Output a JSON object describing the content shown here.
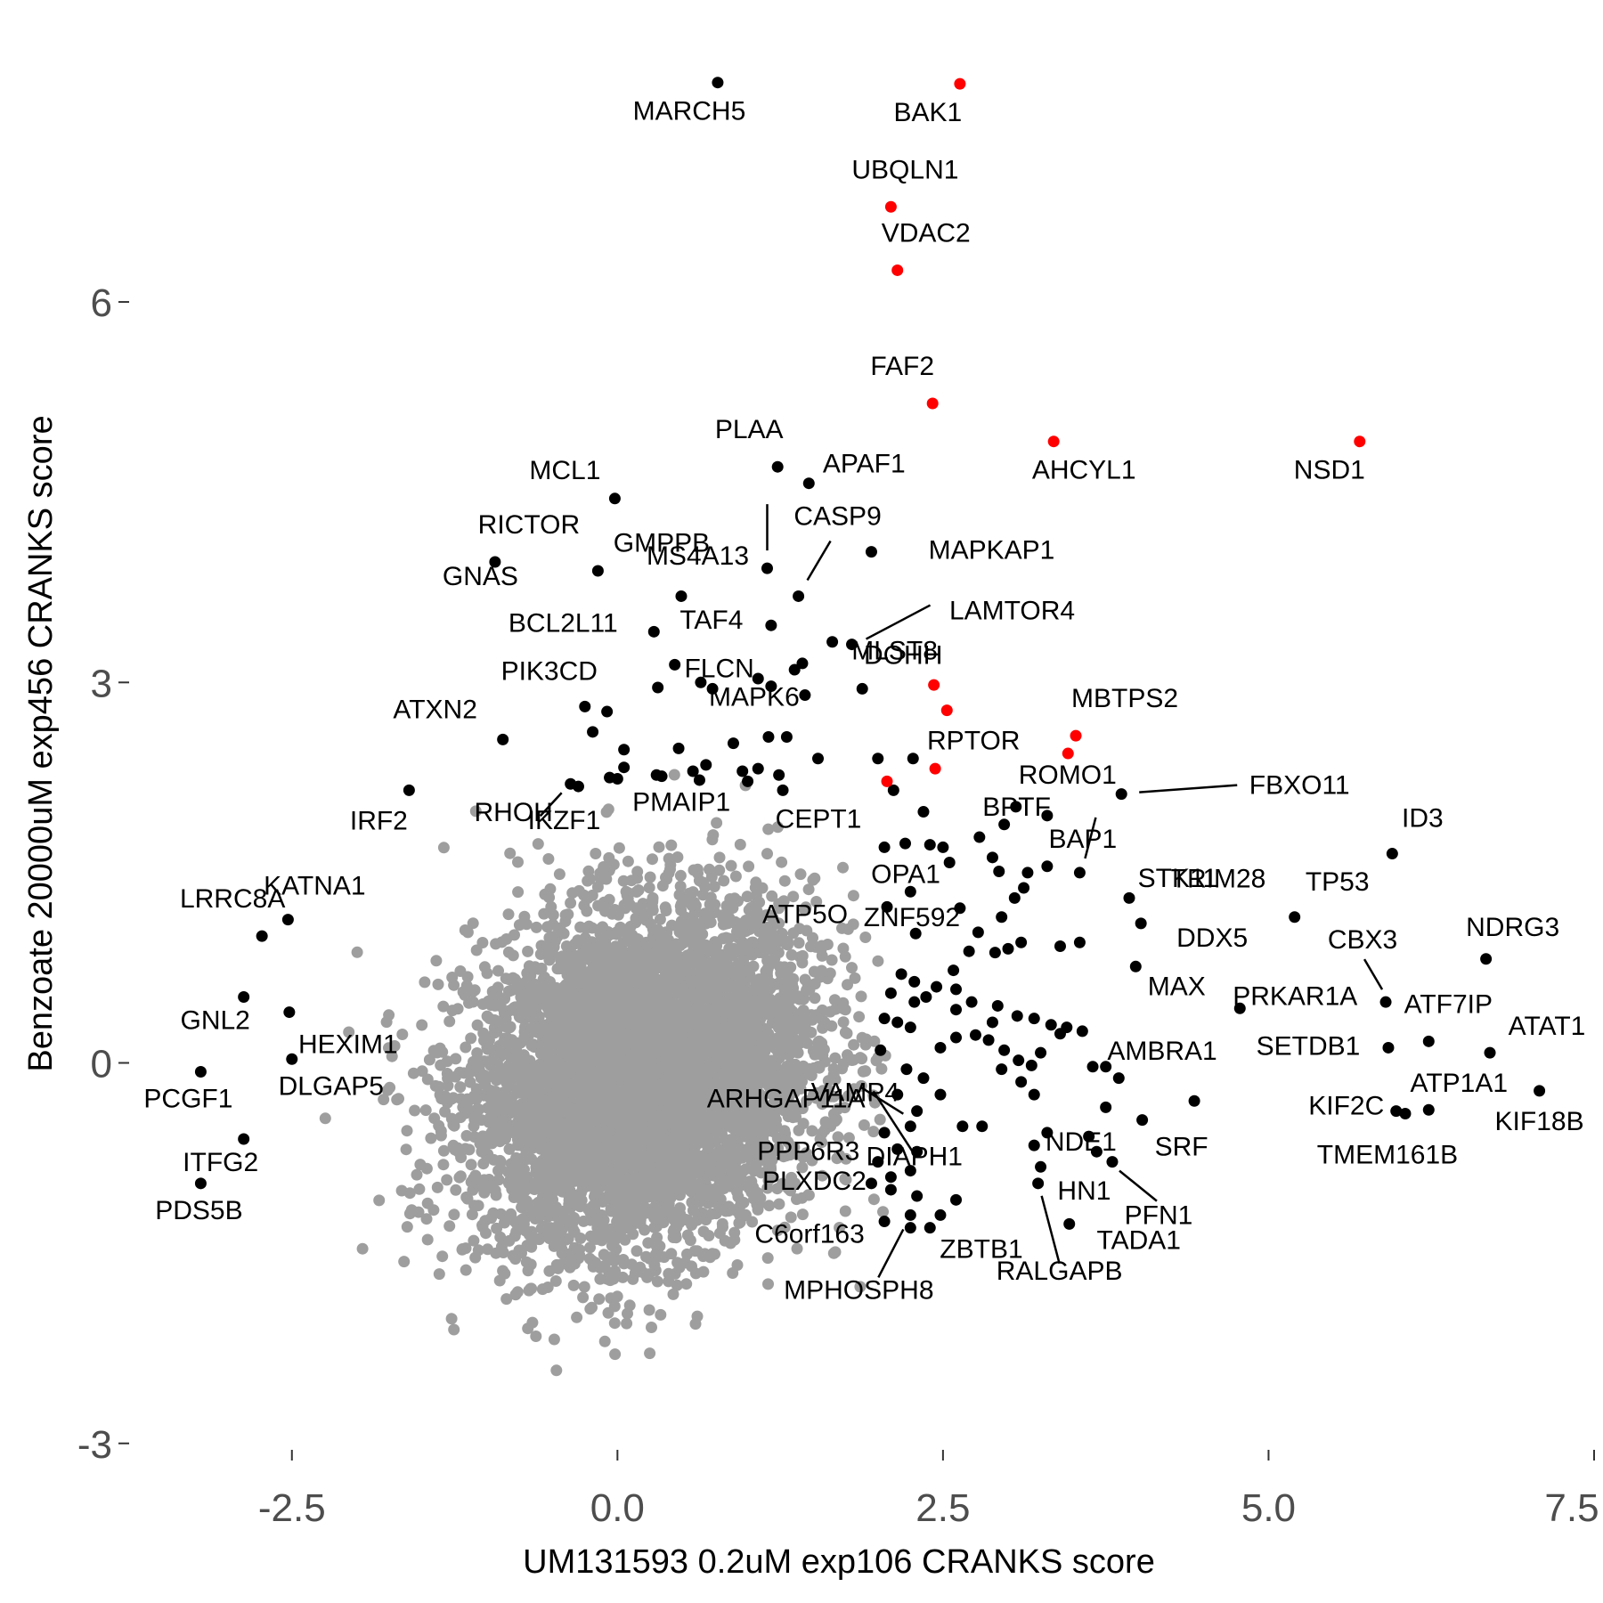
{
  "chart_data": {
    "type": "scatter",
    "xlabel": "UM131593 0.2uM exp106 CRANKS score",
    "ylabel": "Benzoate 20000uM exp456 CRANKS score",
    "xlim": [
      -3.75,
      7.5
    ],
    "ylim": [
      -3.1,
      8.1
    ],
    "x_ticks": [
      {
        "value": -2.5,
        "label": "-2.5"
      },
      {
        "value": 0.0,
        "label": "0.0"
      },
      {
        "value": 2.5,
        "label": "2.5"
      },
      {
        "value": 5.0,
        "label": "5.0"
      },
      {
        "value": 7.5,
        "label": "7.5"
      }
    ],
    "y_ticks": [
      {
        "value": -3,
        "label": "-3"
      },
      {
        "value": 0,
        "label": "0"
      },
      {
        "value": 3,
        "label": "3"
      },
      {
        "value": 6,
        "label": "6"
      }
    ],
    "grid": false,
    "colors": {
      "background": "#7f7f7f",
      "highlight": "#000000",
      "red": "#ff0000",
      "tick": "#4d4d4d"
    },
    "background_cloud": {
      "description_color": "#9e9e9e",
      "center_x": 0.2,
      "center_y": -0.1,
      "sd_x": 0.65,
      "sd_y": 0.65,
      "count": 6000
    },
    "red_points": [
      {
        "label": "BAK1",
        "x": 2.63,
        "y": 7.72
      },
      {
        "label": "UBQLN1",
        "x": 2.1,
        "y": 6.75
      },
      {
        "label": "VDAC2",
        "x": 2.15,
        "y": 6.25
      },
      {
        "label": "FAF2",
        "x": 2.42,
        "y": 5.2
      },
      {
        "label": "AHCYL1",
        "x": 3.35,
        "y": 4.9
      },
      {
        "label": "NSD1",
        "x": 5.7,
        "y": 4.9
      },
      {
        "label": "",
        "x": 2.43,
        "y": 2.98
      },
      {
        "label": "",
        "x": 2.53,
        "y": 2.78
      },
      {
        "label": "MBTPS2",
        "x": 3.52,
        "y": 2.58
      },
      {
        "label": "",
        "x": 3.46,
        "y": 2.44
      },
      {
        "label": "",
        "x": 2.44,
        "y": 2.32
      },
      {
        "label": "",
        "x": 2.07,
        "y": 2.22
      }
    ],
    "labeled_points": [
      {
        "label": "MARCH5",
        "x": 0.77,
        "y": 7.73
      },
      {
        "label": "PLAA",
        "x": 1.23,
        "y": 4.7
      },
      {
        "label": "APAF1",
        "x": 1.47,
        "y": 4.57
      },
      {
        "label": "MCL1",
        "x": -0.02,
        "y": 4.45
      },
      {
        "label": "MS4A13",
        "x": 1.15,
        "y": 3.9
      },
      {
        "label": "RICTOR",
        "x": -0.94,
        "y": 3.95
      },
      {
        "label": "GNAS",
        "x": -0.15,
        "y": 3.88
      },
      {
        "label": "MAPKAP1",
        "x": 1.95,
        "y": 4.03
      },
      {
        "label": "GMPPB",
        "x": 0.49,
        "y": 3.68
      },
      {
        "label": "CASP9",
        "x": 1.39,
        "y": 3.68
      },
      {
        "label": "TAF4",
        "x": 1.18,
        "y": 3.45
      },
      {
        "label": "BCL2L11",
        "x": 0.28,
        "y": 3.4
      },
      {
        "label": "MLST8",
        "x": 1.65,
        "y": 3.32
      },
      {
        "label": "LAMTOR4",
        "x": 1.8,
        "y": 3.3
      },
      {
        "label": "FLCN",
        "x": 0.44,
        "y": 3.14
      },
      {
        "label": "PIK3CD",
        "x": -0.25,
        "y": 2.81
      },
      {
        "label": "DOHH",
        "x": 1.88,
        "y": 2.95
      },
      {
        "label": "MAPK6",
        "x": 0.64,
        "y": 3.0
      },
      {
        "label": "ATXN2",
        "x": -0.88,
        "y": 2.55
      },
      {
        "label": "RHOH",
        "x": -0.36,
        "y": 2.2
      },
      {
        "label": "RPTOR",
        "x": 2.27,
        "y": 2.4
      },
      {
        "label": "ROMO1",
        "x": 3.06,
        "y": 2.02
      },
      {
        "label": "FBXO11",
        "x": 3.87,
        "y": 2.12
      },
      {
        "label": "BPTF",
        "x": 2.97,
        "y": 1.88
      },
      {
        "label": "PMAIP1",
        "x": 0.3,
        "y": 2.27
      },
      {
        "label": "CEPT1",
        "x": 1.27,
        "y": 2.15
      },
      {
        "label": "IRF2",
        "x": -1.6,
        "y": 2.15
      },
      {
        "label": "IKZF1",
        "x": -0.3,
        "y": 2.18
      },
      {
        "label": "BAP1",
        "x": 3.3,
        "y": 1.95
      },
      {
        "label": "STK11",
        "x": 3.55,
        "y": 1.5
      },
      {
        "label": "OPA1",
        "x": 2.05,
        "y": 1.7
      },
      {
        "label": "ID3",
        "x": 5.95,
        "y": 1.65
      },
      {
        "label": "TRIM28",
        "x": 3.93,
        "y": 1.3
      },
      {
        "label": "TP53",
        "x": 5.2,
        "y": 1.15
      },
      {
        "label": "ZNF592",
        "x": 3.15,
        "y": 1.5
      },
      {
        "label": "DDX5",
        "x": 4.02,
        "y": 1.1
      },
      {
        "label": "ATP5O",
        "x": 2.07,
        "y": 1.23
      },
      {
        "label": "KATNA1",
        "x": -2.53,
        "y": 1.13
      },
      {
        "label": "CBX3",
        "x": 5.9,
        "y": 0.48
      },
      {
        "label": "NDRG3",
        "x": 6.67,
        "y": 0.82
      },
      {
        "label": "LRRC8A",
        "x": -2.73,
        "y": 1.0
      },
      {
        "label": "MAX",
        "x": 3.98,
        "y": 0.76
      },
      {
        "label": "PRKAR1A",
        "x": 4.78,
        "y": 0.43
      },
      {
        "label": "ATF7IP",
        "x": 6.23,
        "y": 0.17
      },
      {
        "label": "GNL2",
        "x": -2.87,
        "y": 0.52
      },
      {
        "label": "HEXIM1",
        "x": -2.52,
        "y": 0.4
      },
      {
        "label": "ATAT1",
        "x": 6.7,
        "y": 0.08
      },
      {
        "label": "SETDB1",
        "x": 5.92,
        "y": 0.12
      },
      {
        "label": "AMBRA1",
        "x": 3.65,
        "y": -0.03
      },
      {
        "label": "ARHGAP11A",
        "x": 2.02,
        "y": 0.1
      },
      {
        "label": "DLGAP5",
        "x": -2.5,
        "y": 0.03
      },
      {
        "label": "ATP1A1",
        "x": 6.23,
        "y": -0.37
      },
      {
        "label": "PCGF1",
        "x": -3.2,
        "y": -0.07
      },
      {
        "label": "KIF2C",
        "x": 5.98,
        "y": -0.38
      },
      {
        "label": "KIF18B",
        "x": 7.08,
        "y": -0.22
      },
      {
        "label": "VAMP4",
        "x": 2.25,
        "y": -0.5
      },
      {
        "label": "NDE1",
        "x": 3.3,
        "y": -0.55
      },
      {
        "label": "SRF",
        "x": 4.03,
        "y": -0.45
      },
      {
        "label": "ITFG2",
        "x": -2.87,
        "y": -0.6
      },
      {
        "label": "TMEM161B",
        "x": 6.05,
        "y": -0.4
      },
      {
        "label": "PPP6R3",
        "x": 2.0,
        "y": -0.78
      },
      {
        "label": "DIAPH1",
        "x": 2.65,
        "y": -0.5
      },
      {
        "label": "HN1",
        "x": 3.68,
        "y": -0.7
      },
      {
        "label": "PFN1",
        "x": 3.8,
        "y": -0.78
      },
      {
        "label": "PDS5B",
        "x": -3.2,
        "y": -0.95
      },
      {
        "label": "PLXDC2",
        "x": 2.1,
        "y": -1.0
      },
      {
        "label": "C6orf163",
        "x": 2.05,
        "y": -1.25
      },
      {
        "label": "ZBTB1",
        "x": 2.48,
        "y": -1.2
      },
      {
        "label": "TADA1",
        "x": 3.47,
        "y": -1.27
      },
      {
        "label": "MPHOSPH8",
        "x": 2.25,
        "y": -1.2
      },
      {
        "label": "RALGAPB",
        "x": 3.23,
        "y": -0.95
      }
    ],
    "extra_black_points": [
      [
        0.73,
        2.95
      ],
      [
        1.08,
        3.03
      ],
      [
        1.36,
        3.1
      ],
      [
        1.42,
        3.15
      ],
      [
        1.18,
        2.97
      ],
      [
        1.44,
        2.9
      ],
      [
        0.31,
        2.96
      ],
      [
        -0.08,
        2.77
      ],
      [
        -0.19,
        2.61
      ],
      [
        0.47,
        2.48
      ],
      [
        0.05,
        2.47
      ],
      [
        0.89,
        2.52
      ],
      [
        1.16,
        2.57
      ],
      [
        1.3,
        2.57
      ],
      [
        1.54,
        2.4
      ],
      [
        2.0,
        2.4
      ],
      [
        0.68,
        2.35
      ],
      [
        1.08,
        2.32
      ],
      [
        0.96,
        2.3
      ],
      [
        1.24,
        2.27
      ],
      [
        1.0,
        2.22
      ],
      [
        0.58,
        2.3
      ],
      [
        0.05,
        2.33
      ],
      [
        0.34,
        2.26
      ],
      [
        0.63,
        2.23
      ],
      [
        -0.06,
        2.25
      ],
      [
        0.0,
        2.24
      ],
      [
        2.35,
        1.98
      ],
      [
        2.12,
        2.15
      ],
      [
        2.21,
        1.73
      ],
      [
        2.55,
        1.58
      ],
      [
        2.4,
        1.72
      ],
      [
        2.5,
        1.7
      ],
      [
        2.78,
        1.78
      ],
      [
        2.88,
        1.62
      ],
      [
        2.93,
        1.51
      ],
      [
        2.25,
        1.35
      ],
      [
        2.63,
        1.22
      ],
      [
        2.77,
        1.03
      ],
      [
        2.29,
        1.02
      ],
      [
        3.05,
        1.3
      ],
      [
        3.12,
        1.38
      ],
      [
        3.3,
        1.55
      ],
      [
        2.95,
        1.15
      ],
      [
        3.1,
        0.95
      ],
      [
        3.4,
        0.92
      ],
      [
        2.9,
        0.87
      ],
      [
        3.0,
        0.9
      ],
      [
        2.7,
        0.88
      ],
      [
        2.58,
        0.73
      ],
      [
        2.18,
        0.7
      ],
      [
        2.45,
        0.6
      ],
      [
        2.6,
        0.58
      ],
      [
        2.28,
        0.64
      ],
      [
        2.37,
        0.52
      ],
      [
        2.1,
        0.55
      ],
      [
        2.28,
        0.48
      ],
      [
        2.05,
        0.35
      ],
      [
        2.15,
        0.32
      ],
      [
        2.25,
        0.28
      ],
      [
        2.6,
        0.42
      ],
      [
        2.72,
        0.48
      ],
      [
        2.92,
        0.45
      ],
      [
        2.88,
        0.32
      ],
      [
        3.07,
        0.37
      ],
      [
        3.2,
        0.35
      ],
      [
        3.33,
        0.3
      ],
      [
        3.45,
        0.28
      ],
      [
        3.57,
        0.25
      ],
      [
        3.4,
        0.23
      ],
      [
        2.6,
        0.2
      ],
      [
        2.75,
        0.22
      ],
      [
        2.85,
        0.18
      ],
      [
        2.97,
        0.1
      ],
      [
        2.48,
        0.12
      ],
      [
        2.95,
        -0.05
      ],
      [
        3.08,
        0.02
      ],
      [
        3.18,
        -0.02
      ],
      [
        3.25,
        0.08
      ],
      [
        3.1,
        -0.15
      ],
      [
        3.2,
        -0.25
      ],
      [
        2.22,
        -0.05
      ],
      [
        2.35,
        -0.12
      ],
      [
        2.48,
        -0.25
      ],
      [
        2.15,
        -0.25
      ],
      [
        2.3,
        -0.38
      ],
      [
        3.75,
        -0.35
      ],
      [
        4.43,
        -0.3
      ],
      [
        3.85,
        -0.12
      ],
      [
        3.75,
        -0.03
      ],
      [
        3.55,
        0.95
      ],
      [
        2.8,
        -0.5
      ],
      [
        3.2,
        -0.65
      ],
      [
        3.25,
        -0.82
      ],
      [
        3.62,
        -0.58
      ],
      [
        2.05,
        -0.55
      ],
      [
        2.15,
        -0.68
      ],
      [
        2.3,
        -0.7
      ],
      [
        2.1,
        -0.9
      ],
      [
        2.25,
        -0.85
      ],
      [
        2.6,
        -1.08
      ],
      [
        2.3,
        -1.05
      ],
      [
        2.25,
        -1.3
      ],
      [
        2.4,
        -1.3
      ],
      [
        1.95,
        -0.95
      ]
    ]
  }
}
